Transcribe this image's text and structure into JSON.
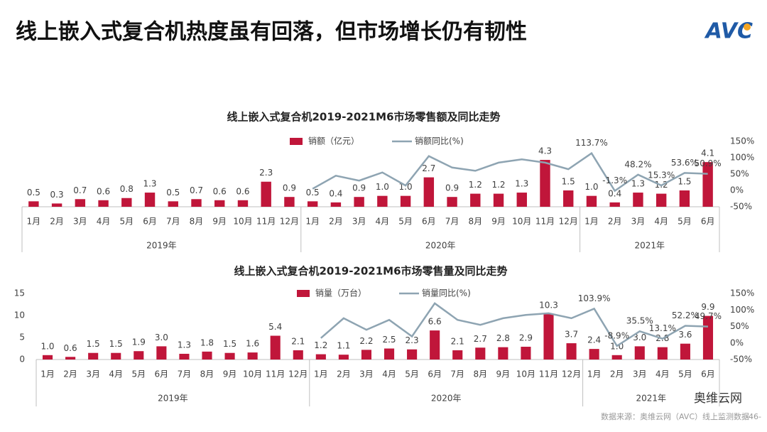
{
  "header": {
    "title": "线上嵌入式复合机热度虽有回落，但市场增长仍有韧性",
    "logo": "AVC"
  },
  "footer": {
    "source": "数据来源：奥维云网（AVC）线上监测数据",
    "page": "-46-",
    "badge": "奥维云网"
  },
  "chart_data": [
    {
      "type": "bar",
      "title": "线上嵌入式复合机2019-2021M6市场零售额及同比走势",
      "groups": [
        {
          "name": "2019年",
          "categories": [
            "1月",
            "2月",
            "3月",
            "4月",
            "5月",
            "6月",
            "7月",
            "8月",
            "9月",
            "10月",
            "11月",
            "12月"
          ]
        },
        {
          "name": "2020年",
          "categories": [
            "1月",
            "2月",
            "3月",
            "4月",
            "5月",
            "6月",
            "7月",
            "8月",
            "9月",
            "10月",
            "11月",
            "12月"
          ]
        },
        {
          "name": "2021年",
          "categories": [
            "1月",
            "2月",
            "3月",
            "4月",
            "5月",
            "6月"
          ]
        }
      ],
      "series": [
        {
          "name": "销额（亿元）",
          "color": "#c0163a",
          "values": [
            0.5,
            0.3,
            0.7,
            0.6,
            0.8,
            1.3,
            0.5,
            0.7,
            0.6,
            0.6,
            2.3,
            0.9,
            0.5,
            0.4,
            0.9,
            1.0,
            1.0,
            2.7,
            0.9,
            1.2,
            1.2,
            1.3,
            4.3,
            1.5,
            1.0,
            0.4,
            1.3,
            1.2,
            1.5,
            4.1
          ],
          "value_labels": [
            "0.5",
            "0.3",
            "0.7",
            "0.6",
            "0.8",
            "1.3",
            "0.5",
            "0.7",
            "0.6",
            "0.6",
            "2.3",
            "0.9",
            "0.5",
            "0.4",
            "0.9",
            "1.0",
            "1.0",
            "2.7",
            "0.9",
            "1.2",
            "1.2",
            "1.3",
            "4.3",
            "1.5",
            "1.0",
            "0.4",
            "1.3",
            "1.2",
            "1.5",
            "4.1"
          ]
        },
        {
          "name": "销额同比(%)",
          "color": "#8ea4b2",
          "axis": "y2",
          "values": [
            null,
            null,
            null,
            null,
            null,
            null,
            null,
            null,
            null,
            null,
            null,
            null,
            5,
            45,
            30,
            55,
            15,
            105,
            70,
            60,
            85,
            95,
            85,
            65,
            113.7,
            -1.3,
            48.2,
            15.3,
            53.6,
            50.9
          ],
          "value_labels": [
            null,
            null,
            null,
            null,
            null,
            null,
            null,
            null,
            null,
            null,
            null,
            null,
            null,
            null,
            null,
            null,
            null,
            null,
            null,
            null,
            null,
            null,
            null,
            null,
            "113.7%",
            "-1.3%",
            "48.2%",
            "15.3%",
            "53.6%",
            "50.9%"
          ]
        }
      ],
      "ylim": [
        0,
        6
      ],
      "y2lim": [
        -50,
        150
      ],
      "y2ticks": [
        {
          "value": 150,
          "label": "150%"
        },
        {
          "value": 100,
          "label": "100%"
        },
        {
          "value": 50,
          "label": "50%"
        },
        {
          "value": 0,
          "label": "0%"
        },
        {
          "value": -50,
          "label": "-50%"
        }
      ],
      "legend": "top"
    },
    {
      "type": "bar",
      "title": "线上嵌入式复合机2019-2021M6市场零售量及同比走势",
      "groups": [
        {
          "name": "2019年",
          "categories": [
            "1月",
            "2月",
            "3月",
            "4月",
            "5月",
            "6月",
            "7月",
            "8月",
            "9月",
            "10月",
            "11月",
            "12月"
          ]
        },
        {
          "name": "2020年",
          "categories": [
            "1月",
            "2月",
            "3月",
            "4月",
            "5月",
            "6月",
            "7月",
            "8月",
            "9月",
            "10月",
            "11月",
            "12月"
          ]
        },
        {
          "name": "2021年",
          "categories": [
            "1月",
            "2月",
            "3月",
            "4月",
            "5月",
            "6月"
          ]
        }
      ],
      "series": [
        {
          "name": "销量（万台）",
          "color": "#c0163a",
          "values": [
            1.0,
            0.6,
            1.5,
            1.5,
            1.9,
            3.0,
            1.3,
            1.8,
            1.5,
            1.6,
            5.4,
            2.1,
            1.2,
            1.1,
            2.2,
            2.5,
            2.3,
            6.6,
            2.1,
            2.7,
            2.8,
            2.9,
            10.3,
            3.7,
            2.4,
            1.0,
            3.0,
            2.8,
            3.6,
            9.9
          ],
          "value_labels": [
            "1.0",
            "0.6",
            "1.5",
            "1.5",
            "1.9",
            "3.0",
            "1.3",
            "1.8",
            "1.5",
            "1.6",
            "5.4",
            "2.1",
            "1.2",
            "1.1",
            "2.2",
            "2.5",
            "2.3",
            "6.6",
            "2.1",
            "2.7",
            "2.8",
            "2.9",
            "10.3",
            "3.7",
            "2.4",
            "1.0",
            "3.0",
            "2.8",
            "3.6",
            "9.9"
          ]
        },
        {
          "name": "销量同比(%)",
          "color": "#8ea4b2",
          "axis": "y2",
          "values": [
            null,
            null,
            null,
            null,
            null,
            null,
            null,
            null,
            null,
            null,
            null,
            null,
            15,
            75,
            40,
            70,
            20,
            120,
            70,
            55,
            75,
            85,
            90,
            75,
            103.9,
            -8.9,
            35.5,
            13.1,
            52.2,
            49.7
          ],
          "value_labels": [
            null,
            null,
            null,
            null,
            null,
            null,
            null,
            null,
            null,
            null,
            null,
            null,
            null,
            null,
            null,
            null,
            null,
            null,
            null,
            null,
            null,
            null,
            null,
            null,
            "103.9%",
            "-8.9%",
            "35.5%",
            "13.1%",
            "52.2%",
            "49.7%"
          ]
        }
      ],
      "ylim": [
        0,
        15
      ],
      "yticks": [
        0,
        5,
        10,
        15
      ],
      "y2lim": [
        -50,
        150
      ],
      "y2ticks": [
        {
          "value": 150,
          "label": "150%"
        },
        {
          "value": 100,
          "label": "100%"
        },
        {
          "value": 50,
          "label": "50%"
        },
        {
          "value": 0,
          "label": "0%"
        },
        {
          "value": -50,
          "label": "-50%"
        }
      ],
      "legend": "top"
    }
  ]
}
